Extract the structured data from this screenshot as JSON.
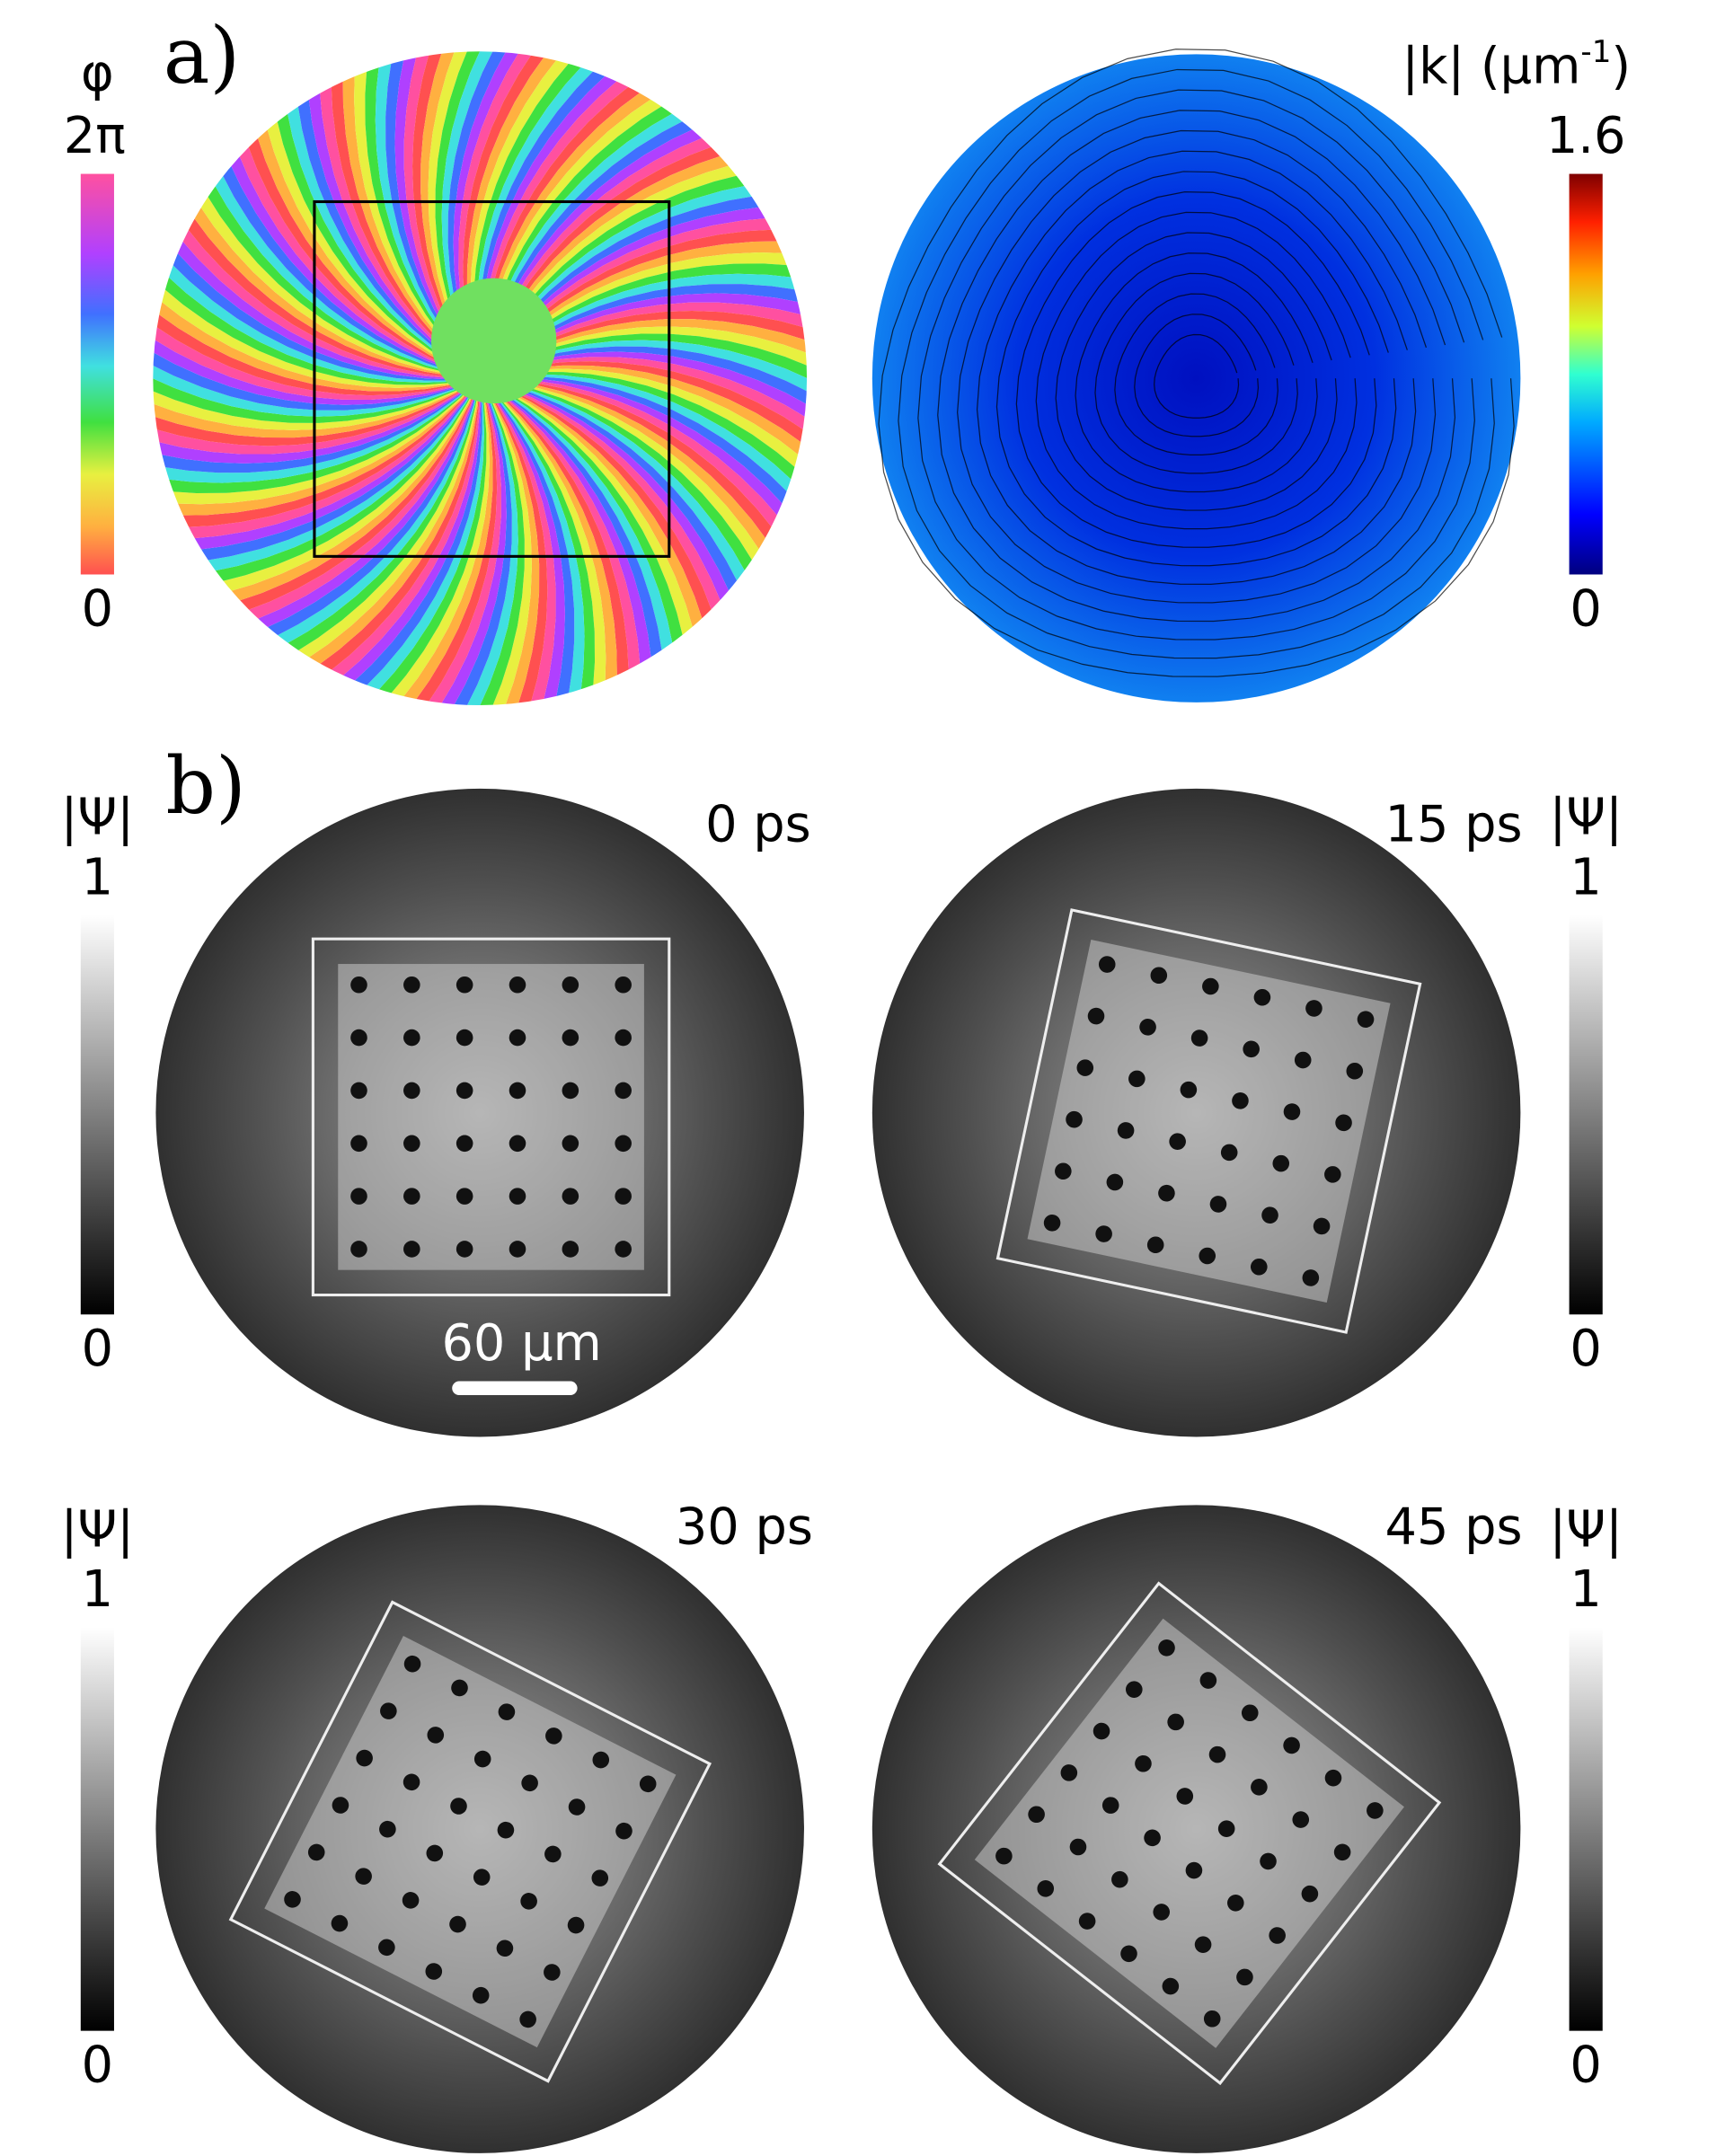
{
  "panel_a": {
    "label": "a)",
    "phase_colorbar": {
      "symbol": "φ",
      "max": "2π",
      "min": "0"
    },
    "k_colorbar": {
      "symbol": "|k| (μm",
      "exponent": "-1",
      "tail": ")",
      "max": "1.6",
      "min": "0"
    }
  },
  "panel_b": {
    "label": "b)",
    "scale_bar": "60 μm",
    "snapshots": [
      {
        "time": "0 ps",
        "colorbar": {
          "symbol": "|Ψ|",
          "max": "1",
          "min": "0"
        }
      },
      {
        "time": "15 ps",
        "colorbar": {
          "symbol": "|Ψ|",
          "max": "1",
          "min": "0"
        }
      },
      {
        "time": "30 ps",
        "colorbar": {
          "symbol": "|Ψ|",
          "max": "1",
          "min": "0"
        }
      },
      {
        "time": "45 ps",
        "colorbar": {
          "symbol": "|Ψ|",
          "max": "1",
          "min": "0"
        }
      }
    ]
  }
}
